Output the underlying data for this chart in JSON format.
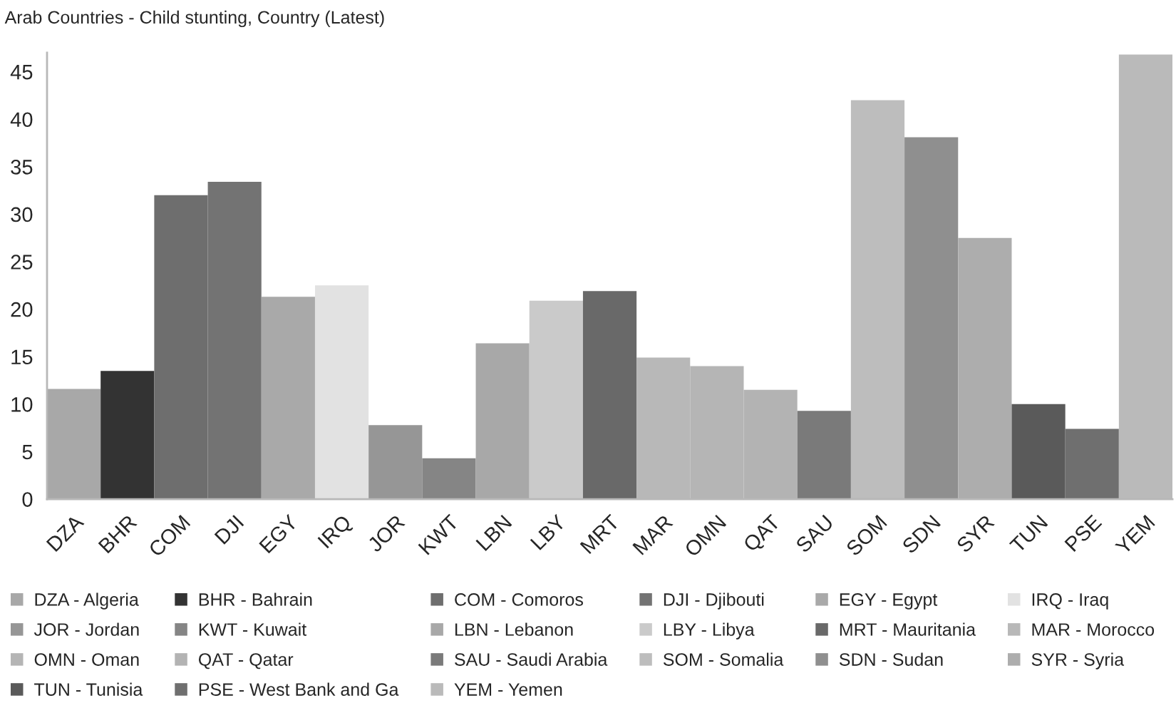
{
  "chart_data": {
    "type": "bar",
    "title": "Arab Countries - Child stunting, Country (Latest)",
    "categories": [
      "DZA",
      "BHR",
      "COM",
      "DJI",
      "EGY",
      "IRQ",
      "JOR",
      "KWT",
      "LBN",
      "LBY",
      "MRT",
      "MAR",
      "OMN",
      "QAT",
      "SAU",
      "SOM",
      "SDN",
      "SYR",
      "TUN",
      "PSE",
      "YEM"
    ],
    "stacked": true,
    "ylim": [
      0,
      47
    ],
    "yticks": [
      0,
      5,
      10,
      15,
      20,
      25,
      30,
      35,
      40,
      45
    ],
    "grid": false,
    "legend": "bottom",
    "series": [
      {
        "name": "DZA - Algeria",
        "color": "#a8a8a8",
        "values": [
          11.6,
          null,
          null,
          null,
          null,
          null,
          null,
          null,
          null,
          null,
          null,
          null,
          null,
          null,
          null,
          null,
          null,
          null,
          null,
          null,
          null
        ]
      },
      {
        "name": "BHR - Bahrain",
        "color": "#333333",
        "values": [
          null,
          13.5,
          null,
          null,
          null,
          null,
          null,
          null,
          null,
          null,
          null,
          null,
          null,
          null,
          null,
          null,
          null,
          null,
          null,
          null,
          null
        ]
      },
      {
        "name": "COM - Comoros",
        "color": "#6e6e6e",
        "values": [
          null,
          null,
          32.0,
          null,
          null,
          null,
          null,
          null,
          null,
          null,
          null,
          null,
          null,
          null,
          null,
          null,
          null,
          null,
          null,
          null,
          null
        ]
      },
      {
        "name": "DJI - Djibouti",
        "color": "#737373",
        "values": [
          null,
          null,
          null,
          33.4,
          null,
          null,
          null,
          null,
          null,
          null,
          null,
          null,
          null,
          null,
          null,
          null,
          null,
          null,
          null,
          null,
          null
        ]
      },
      {
        "name": "EGY - Egypt",
        "color": "#a9a9a9",
        "values": [
          null,
          null,
          null,
          null,
          21.3,
          null,
          null,
          null,
          null,
          null,
          null,
          null,
          null,
          null,
          null,
          null,
          null,
          null,
          null,
          null,
          null
        ]
      },
      {
        "name": "IRQ - Iraq",
        "color": "#e2e2e2",
        "values": [
          null,
          null,
          null,
          null,
          null,
          22.5,
          null,
          null,
          null,
          null,
          null,
          null,
          null,
          null,
          null,
          null,
          null,
          null,
          null,
          null,
          null
        ]
      },
      {
        "name": "JOR - Jordan",
        "color": "#969696",
        "values": [
          null,
          null,
          null,
          null,
          null,
          null,
          7.8,
          null,
          null,
          null,
          null,
          null,
          null,
          null,
          null,
          null,
          null,
          null,
          null,
          null,
          null
        ]
      },
      {
        "name": "KWT - Kuwait",
        "color": "#858585",
        "values": [
          null,
          null,
          null,
          null,
          null,
          null,
          null,
          4.3,
          null,
          null,
          null,
          null,
          null,
          null,
          null,
          null,
          null,
          null,
          null,
          null,
          null
        ]
      },
      {
        "name": "LBN - Lebanon",
        "color": "#a8a8a8",
        "values": [
          null,
          null,
          null,
          null,
          null,
          null,
          null,
          null,
          16.4,
          null,
          null,
          null,
          null,
          null,
          null,
          null,
          null,
          null,
          null,
          null,
          null
        ]
      },
      {
        "name": "LBY - Libya",
        "color": "#cacaca",
        "values": [
          null,
          null,
          null,
          null,
          null,
          null,
          null,
          null,
          null,
          20.9,
          null,
          null,
          null,
          null,
          null,
          null,
          null,
          null,
          null,
          null,
          null
        ]
      },
      {
        "name": "MRT - Mauritania",
        "color": "#696969",
        "values": [
          null,
          null,
          null,
          null,
          null,
          null,
          null,
          null,
          null,
          null,
          21.9,
          null,
          null,
          null,
          null,
          null,
          null,
          null,
          null,
          null,
          null
        ]
      },
      {
        "name": "MAR - Morocco",
        "color": "#b8b8b8",
        "values": [
          null,
          null,
          null,
          null,
          null,
          null,
          null,
          null,
          null,
          null,
          null,
          14.9,
          null,
          null,
          null,
          null,
          null,
          null,
          null,
          null,
          null
        ]
      },
      {
        "name": "OMN - Oman",
        "color": "#b5b5b5",
        "values": [
          null,
          null,
          null,
          null,
          null,
          null,
          null,
          null,
          null,
          null,
          null,
          null,
          14.0,
          null,
          null,
          null,
          null,
          null,
          null,
          null,
          null
        ]
      },
      {
        "name": "QAT - Qatar",
        "color": "#b3b3b3",
        "values": [
          null,
          null,
          null,
          null,
          null,
          null,
          null,
          null,
          null,
          null,
          null,
          null,
          null,
          11.5,
          null,
          null,
          null,
          null,
          null,
          null,
          null
        ]
      },
      {
        "name": "SAU - Saudi Arabia",
        "color": "#7a7a7a",
        "values": [
          null,
          null,
          null,
          null,
          null,
          null,
          null,
          null,
          null,
          null,
          null,
          null,
          null,
          null,
          9.3,
          null,
          null,
          null,
          null,
          null,
          null
        ]
      },
      {
        "name": "SOM - Somalia",
        "color": "#bdbdbd",
        "values": [
          null,
          null,
          null,
          null,
          null,
          null,
          null,
          null,
          null,
          null,
          null,
          null,
          null,
          null,
          null,
          42.0,
          null,
          null,
          null,
          null,
          null
        ]
      },
      {
        "name": "SDN - Sudan",
        "color": "#8f8f8f",
        "values": [
          null,
          null,
          null,
          null,
          null,
          null,
          null,
          null,
          null,
          null,
          null,
          null,
          null,
          null,
          null,
          null,
          38.1,
          null,
          null,
          null,
          null
        ]
      },
      {
        "name": "SYR - Syria",
        "color": "#adadad",
        "values": [
          null,
          null,
          null,
          null,
          null,
          null,
          null,
          null,
          null,
          null,
          null,
          null,
          null,
          null,
          null,
          null,
          null,
          27.5,
          null,
          null,
          null
        ]
      },
      {
        "name": "TUN - Tunisia",
        "color": "#5a5a5a",
        "values": [
          null,
          null,
          null,
          null,
          null,
          null,
          null,
          null,
          null,
          null,
          null,
          null,
          null,
          null,
          null,
          null,
          null,
          null,
          10.0,
          null,
          null
        ]
      },
      {
        "name": "PSE - West Bank and Ga",
        "color": "#6f6f6f",
        "values": [
          null,
          null,
          null,
          null,
          null,
          null,
          null,
          null,
          null,
          null,
          null,
          null,
          null,
          null,
          null,
          null,
          null,
          null,
          null,
          7.4,
          null
        ]
      },
      {
        "name": "YEM - Yemen",
        "color": "#bababa",
        "values": [
          null,
          null,
          null,
          null,
          null,
          null,
          null,
          null,
          null,
          null,
          null,
          null,
          null,
          null,
          null,
          null,
          null,
          null,
          null,
          null,
          46.8
        ]
      }
    ]
  }
}
